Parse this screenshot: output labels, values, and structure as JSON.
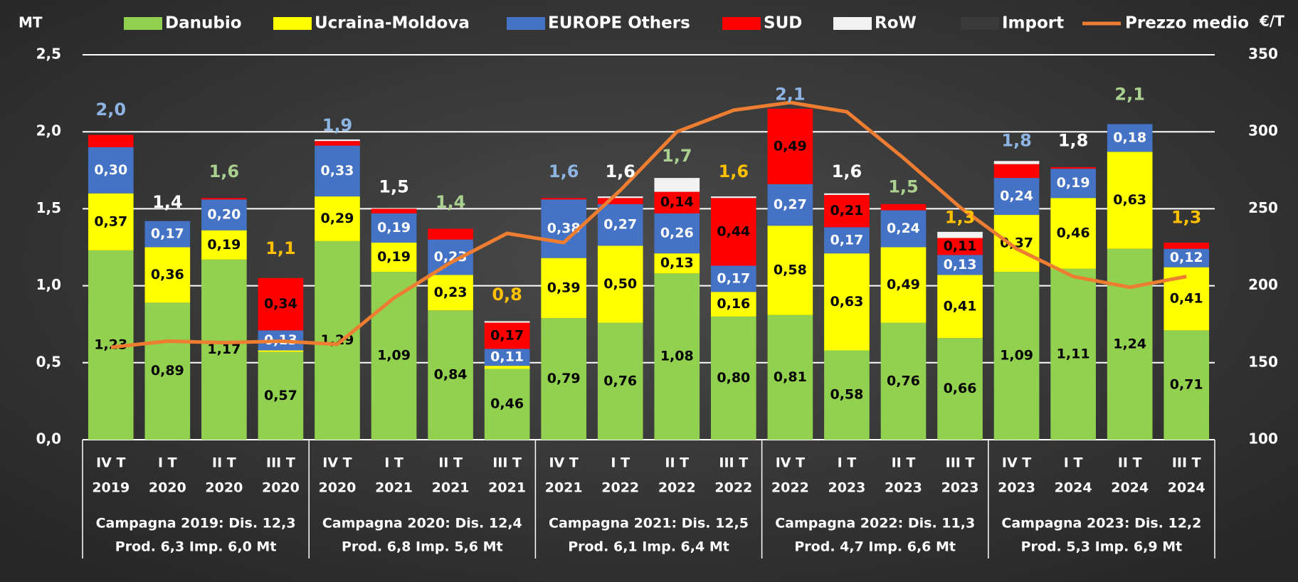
{
  "chart_data": {
    "type": "stacked_bar_line",
    "y_label": "MT",
    "y2_label": "€/T",
    "categories": [
      [
        "IV T",
        "2019"
      ],
      [
        "I T",
        "2020"
      ],
      [
        "II T",
        "2020"
      ],
      [
        "III T",
        "2020"
      ],
      [
        "IV T",
        "2020"
      ],
      [
        "I T",
        "2021"
      ],
      [
        "II T",
        "2021"
      ],
      [
        "III T",
        "2021"
      ],
      [
        "IV T",
        "2021"
      ],
      [
        "I T",
        "2022"
      ],
      [
        "II T",
        "2022"
      ],
      [
        "III T",
        "2022"
      ],
      [
        "IV T",
        "2022"
      ],
      [
        "I T",
        "2023"
      ],
      [
        "II T",
        "2023"
      ],
      [
        "III T",
        "2023"
      ],
      [
        "IV T",
        "2023"
      ],
      [
        "I T",
        "2024"
      ],
      [
        "II T",
        "2024"
      ],
      [
        "III T",
        "2024"
      ]
    ],
    "groups": [
      [
        "Campagna 2019: Dis. 12,3",
        "Prod. 6,3 Imp. 6,0 Mt"
      ],
      [
        "Campagna 2020: Dis. 12,4",
        "Prod. 6,8 Imp. 5,6 Mt"
      ],
      [
        "Campagna 2021: Dis. 12,5",
        "Prod. 6,1 Imp. 6,4 Mt"
      ],
      [
        "Campagna 2022: Dis. 11,3",
        "Prod. 4,7 Imp. 6,6 Mt"
      ],
      [
        "Campagna 2023: Dis. 12,2",
        "Prod. 5,3 Imp. 6,9 Mt"
      ]
    ],
    "ylim": [
      0,
      2.5
    ],
    "yticks": [
      {
        "value": 0,
        "label": "0,0"
      },
      {
        "value": 0.5,
        "label": "0,5"
      },
      {
        "value": 1,
        "label": "1,0"
      },
      {
        "value": 1.5,
        "label": "1,5"
      },
      {
        "value": 2,
        "label": "2,0"
      },
      {
        "value": 2.5,
        "label": "2,5"
      }
    ],
    "y2lim": [
      100,
      350
    ],
    "y2ticks": [
      100,
      150,
      200,
      250,
      300,
      350
    ],
    "grid": true,
    "legend": "top",
    "series": [
      {
        "name": "Danubio",
        "kind": "bar",
        "color": "#92d050",
        "label_color": "#000000",
        "values": [
          1.23,
          0.89,
          1.17,
          0.57,
          1.29,
          1.09,
          0.84,
          0.46,
          0.79,
          0.76,
          1.08,
          0.8,
          0.81,
          0.58,
          0.76,
          0.66,
          1.09,
          1.11,
          1.24,
          0.71
        ],
        "value_labels": [
          "1,23",
          "0,89",
          "1,17",
          "0,57",
          "1,29",
          "1,09",
          "0,84",
          "0,46",
          "0,79",
          "0,76",
          "1,08",
          "0,80",
          "0,81",
          "0,58",
          "0,76",
          "0,66",
          "1,09",
          "1,11",
          "1,24",
          "0,71"
        ]
      },
      {
        "name": "Ucraina-Moldova",
        "kind": "bar",
        "color": "#ffff00",
        "label_color": "#000000",
        "values": [
          0.37,
          0.36,
          0.19,
          0.01,
          0.29,
          0.19,
          0.23,
          0.02,
          0.39,
          0.5,
          0.13,
          0.16,
          0.58,
          0.63,
          0.49,
          0.41,
          0.37,
          0.46,
          0.63,
          0.41
        ],
        "value_labels": [
          "0,37",
          "0,36",
          "0,19",
          null,
          "0,29",
          "0,19",
          "0,23",
          null,
          "0,39",
          "0,50",
          "0,13",
          "0,16",
          "0,58",
          "0,63",
          "0,49",
          "0,41",
          "0,37",
          "0,46",
          "0,63",
          "0,41"
        ]
      },
      {
        "name": "EUROPE Others",
        "kind": "bar",
        "color": "#4472c4",
        "label_color": "#ffffff",
        "values": [
          0.3,
          0.17,
          0.2,
          0.13,
          0.33,
          0.19,
          0.23,
          0.11,
          0.38,
          0.27,
          0.26,
          0.17,
          0.27,
          0.17,
          0.24,
          0.13,
          0.24,
          0.19,
          0.18,
          0.12
        ],
        "value_labels": [
          "0,30",
          "0,17",
          "0,20",
          "0,13",
          "0,33",
          "0,19",
          "0,23",
          "0,11",
          "0,38",
          "0,27",
          "0,26",
          "0,17",
          "0,27",
          "0,17",
          "0,24",
          "0,13",
          "0,24",
          "0,19",
          "0,18",
          "0,12"
        ]
      },
      {
        "name": "SUD",
        "kind": "bar",
        "color": "#ff0000",
        "label_color": "#000000",
        "values": [
          0.08,
          0.0,
          0.01,
          0.34,
          0.03,
          0.03,
          0.07,
          0.17,
          0.01,
          0.04,
          0.14,
          0.44,
          0.49,
          0.21,
          0.04,
          0.11,
          0.09,
          0.01,
          0.0,
          0.04
        ],
        "value_labels": [
          null,
          null,
          null,
          "0,34",
          null,
          null,
          null,
          "0,17",
          null,
          null,
          "0,14",
          "0,44",
          "0,49",
          "0,21",
          null,
          "0,11",
          null,
          null,
          null,
          null
        ]
      },
      {
        "name": "RoW",
        "kind": "bar",
        "color": "#f2f2f2",
        "label_color": "#000000",
        "values": [
          0,
          0,
          0,
          0,
          0.01,
          0,
          0,
          0.01,
          0,
          0.01,
          0.09,
          0.01,
          0,
          0.01,
          0,
          0.04,
          0.02,
          0,
          0,
          0
        ],
        "value_labels": [
          null,
          null,
          null,
          null,
          null,
          null,
          null,
          null,
          null,
          null,
          null,
          null,
          null,
          null,
          null,
          null,
          null,
          null,
          null,
          null
        ]
      },
      {
        "name": "Import",
        "kind": "total",
        "color": "#3a3a3a",
        "colors": [
          "#8db4e2",
          "#ffffff",
          "#a9d08e",
          "#ffc000",
          "#8db4e2",
          "#ffffff",
          "#a9d08e",
          "#ffc000",
          "#8db4e2",
          "#ffffff",
          "#a9d08e",
          "#ffc000",
          "#8db4e2",
          "#ffffff",
          "#a9d08e",
          "#ffc000",
          "#8db4e2",
          "#ffffff",
          "#a9d08e",
          "#ffc000"
        ],
        "values": [
          2.0,
          1.4,
          1.6,
          1.1,
          1.9,
          1.5,
          1.4,
          0.8,
          1.6,
          1.6,
          1.7,
          1.6,
          2.1,
          1.6,
          1.5,
          1.3,
          1.8,
          1.8,
          2.1,
          1.3
        ],
        "value_labels": [
          "2,0",
          "1,4",
          "1,6",
          "1,1",
          "1,9",
          "1,5",
          "1,4",
          "0,8",
          "1,6",
          "1,6",
          "1,7",
          "1,6",
          "2,1",
          "1,6",
          "1,5",
          "1,3",
          "1,8",
          "1,8",
          "2,1",
          "1,3"
        ]
      },
      {
        "name": "Prezzo medio",
        "kind": "line",
        "axis": "y2",
        "color": "#ed7d31",
        "values": [
          160,
          164,
          163,
          164,
          162,
          192,
          215,
          234,
          228,
          262,
          300,
          314,
          319,
          313,
          283,
          251,
          224,
          206,
          199,
          206
        ]
      }
    ]
  }
}
